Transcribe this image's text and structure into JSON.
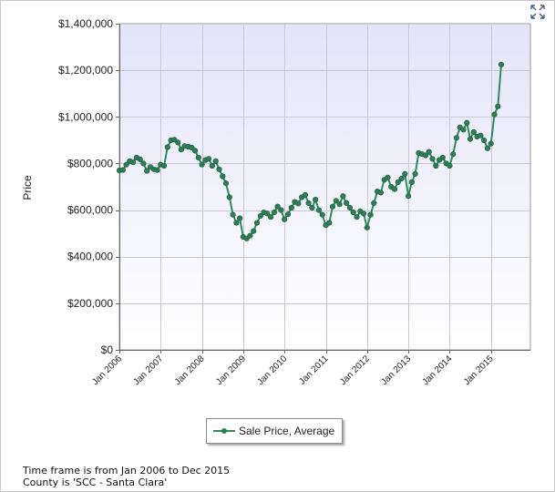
{
  "chart_data": {
    "type": "line",
    "title": "",
    "xlabel": "",
    "ylabel": "Price",
    "ylim": [
      0,
      1400000
    ],
    "xlim": [
      "2006-01",
      "2016-01"
    ],
    "grid": true,
    "legend_position": "bottom",
    "y_ticks": [
      "$0",
      "$200,000",
      "$400,000",
      "$600,000",
      "$800,000",
      "$1,000,000",
      "$1,200,000",
      "$1,400,000"
    ],
    "x_ticks": [
      "Jan 2006",
      "Jan 2007",
      "Jan 2008",
      "Jan 2009",
      "Jan 2010",
      "Jan 2011",
      "Jan 2012",
      "Jan 2013",
      "Jan 2014",
      "Jan 2015"
    ],
    "line_color": "#2e8b57",
    "series": [
      {
        "name": "Sale Price, Average",
        "points": [
          {
            "x": "2006-01",
            "y": 770000
          },
          {
            "x": "2006-02",
            "y": 772000
          },
          {
            "x": "2006-03",
            "y": 795000
          },
          {
            "x": "2006-04",
            "y": 810000
          },
          {
            "x": "2006-05",
            "y": 805000
          },
          {
            "x": "2006-06",
            "y": 825000
          },
          {
            "x": "2006-07",
            "y": 818000
          },
          {
            "x": "2006-08",
            "y": 800000
          },
          {
            "x": "2006-09",
            "y": 768000
          },
          {
            "x": "2006-10",
            "y": 785000
          },
          {
            "x": "2006-11",
            "y": 775000
          },
          {
            "x": "2006-12",
            "y": 772000
          },
          {
            "x": "2007-01",
            "y": 795000
          },
          {
            "x": "2007-02",
            "y": 790000
          },
          {
            "x": "2007-03",
            "y": 870000
          },
          {
            "x": "2007-04",
            "y": 900000
          },
          {
            "x": "2007-05",
            "y": 902000
          },
          {
            "x": "2007-06",
            "y": 890000
          },
          {
            "x": "2007-07",
            "y": 860000
          },
          {
            "x": "2007-08",
            "y": 875000
          },
          {
            "x": "2007-09",
            "y": 872000
          },
          {
            "x": "2007-10",
            "y": 868000
          },
          {
            "x": "2007-11",
            "y": 855000
          },
          {
            "x": "2007-12",
            "y": 825000
          },
          {
            "x": "2008-01",
            "y": 795000
          },
          {
            "x": "2008-02",
            "y": 815000
          },
          {
            "x": "2008-03",
            "y": 820000
          },
          {
            "x": "2008-04",
            "y": 790000
          },
          {
            "x": "2008-05",
            "y": 810000
          },
          {
            "x": "2008-06",
            "y": 775000
          },
          {
            "x": "2008-07",
            "y": 745000
          },
          {
            "x": "2008-08",
            "y": 715000
          },
          {
            "x": "2008-09",
            "y": 655000
          },
          {
            "x": "2008-10",
            "y": 580000
          },
          {
            "x": "2008-11",
            "y": 545000
          },
          {
            "x": "2008-12",
            "y": 565000
          },
          {
            "x": "2009-01",
            "y": 485000
          },
          {
            "x": "2009-02",
            "y": 478000
          },
          {
            "x": "2009-03",
            "y": 490000
          },
          {
            "x": "2009-04",
            "y": 510000
          },
          {
            "x": "2009-05",
            "y": 545000
          },
          {
            "x": "2009-06",
            "y": 575000
          },
          {
            "x": "2009-07",
            "y": 590000
          },
          {
            "x": "2009-08",
            "y": 585000
          },
          {
            "x": "2009-09",
            "y": 570000
          },
          {
            "x": "2009-10",
            "y": 590000
          },
          {
            "x": "2009-11",
            "y": 615000
          },
          {
            "x": "2009-12",
            "y": 600000
          },
          {
            "x": "2010-01",
            "y": 560000
          },
          {
            "x": "2010-02",
            "y": 582000
          },
          {
            "x": "2010-03",
            "y": 610000
          },
          {
            "x": "2010-04",
            "y": 635000
          },
          {
            "x": "2010-05",
            "y": 628000
          },
          {
            "x": "2010-06",
            "y": 655000
          },
          {
            "x": "2010-07",
            "y": 665000
          },
          {
            "x": "2010-08",
            "y": 630000
          },
          {
            "x": "2010-09",
            "y": 610000
          },
          {
            "x": "2010-10",
            "y": 645000
          },
          {
            "x": "2010-11",
            "y": 600000
          },
          {
            "x": "2010-12",
            "y": 580000
          },
          {
            "x": "2011-01",
            "y": 535000
          },
          {
            "x": "2011-02",
            "y": 545000
          },
          {
            "x": "2011-03",
            "y": 615000
          },
          {
            "x": "2011-04",
            "y": 640000
          },
          {
            "x": "2011-05",
            "y": 625000
          },
          {
            "x": "2011-06",
            "y": 660000
          },
          {
            "x": "2011-07",
            "y": 630000
          },
          {
            "x": "2011-08",
            "y": 610000
          },
          {
            "x": "2011-09",
            "y": 590000
          },
          {
            "x": "2011-10",
            "y": 570000
          },
          {
            "x": "2011-11",
            "y": 595000
          },
          {
            "x": "2011-12",
            "y": 585000
          },
          {
            "x": "2012-01",
            "y": 525000
          },
          {
            "x": "2012-02",
            "y": 580000
          },
          {
            "x": "2012-03",
            "y": 630000
          },
          {
            "x": "2012-04",
            "y": 680000
          },
          {
            "x": "2012-05",
            "y": 675000
          },
          {
            "x": "2012-06",
            "y": 730000
          },
          {
            "x": "2012-07",
            "y": 740000
          },
          {
            "x": "2012-08",
            "y": 700000
          },
          {
            "x": "2012-09",
            "y": 690000
          },
          {
            "x": "2012-10",
            "y": 720000
          },
          {
            "x": "2012-11",
            "y": 735000
          },
          {
            "x": "2012-12",
            "y": 755000
          },
          {
            "x": "2013-01",
            "y": 660000
          },
          {
            "x": "2013-02",
            "y": 720000
          },
          {
            "x": "2013-03",
            "y": 755000
          },
          {
            "x": "2013-04",
            "y": 845000
          },
          {
            "x": "2013-05",
            "y": 840000
          },
          {
            "x": "2013-06",
            "y": 835000
          },
          {
            "x": "2013-07",
            "y": 850000
          },
          {
            "x": "2013-08",
            "y": 820000
          },
          {
            "x": "2013-09",
            "y": 790000
          },
          {
            "x": "2013-10",
            "y": 815000
          },
          {
            "x": "2013-11",
            "y": 825000
          },
          {
            "x": "2013-12",
            "y": 800000
          },
          {
            "x": "2014-01",
            "y": 790000
          },
          {
            "x": "2014-02",
            "y": 840000
          },
          {
            "x": "2014-03",
            "y": 910000
          },
          {
            "x": "2014-04",
            "y": 955000
          },
          {
            "x": "2014-05",
            "y": 945000
          },
          {
            "x": "2014-06",
            "y": 975000
          },
          {
            "x": "2014-07",
            "y": 905000
          },
          {
            "x": "2014-08",
            "y": 935000
          },
          {
            "x": "2014-09",
            "y": 915000
          },
          {
            "x": "2014-10",
            "y": 920000
          },
          {
            "x": "2014-11",
            "y": 900000
          },
          {
            "x": "2014-12",
            "y": 865000
          },
          {
            "x": "2015-01",
            "y": 885000
          },
          {
            "x": "2015-02",
            "y": 1010000
          },
          {
            "x": "2015-03",
            "y": 1045000
          },
          {
            "x": "2015-04",
            "y": 1225000
          }
        ]
      }
    ]
  },
  "legend": {
    "label": "Sale Price, Average"
  },
  "footnotes": {
    "line1": "Time frame is from Jan 2006 to Dec 2015",
    "line2": "County is 'SCC - Santa Clara'"
  },
  "icons": {
    "expand": "expand-icon"
  },
  "colors": {
    "plot_bg_top": "#e6e6fb",
    "plot_bg_bottom": "#ffffff",
    "line": "#2e8b57",
    "marker": "#2e7d55"
  }
}
